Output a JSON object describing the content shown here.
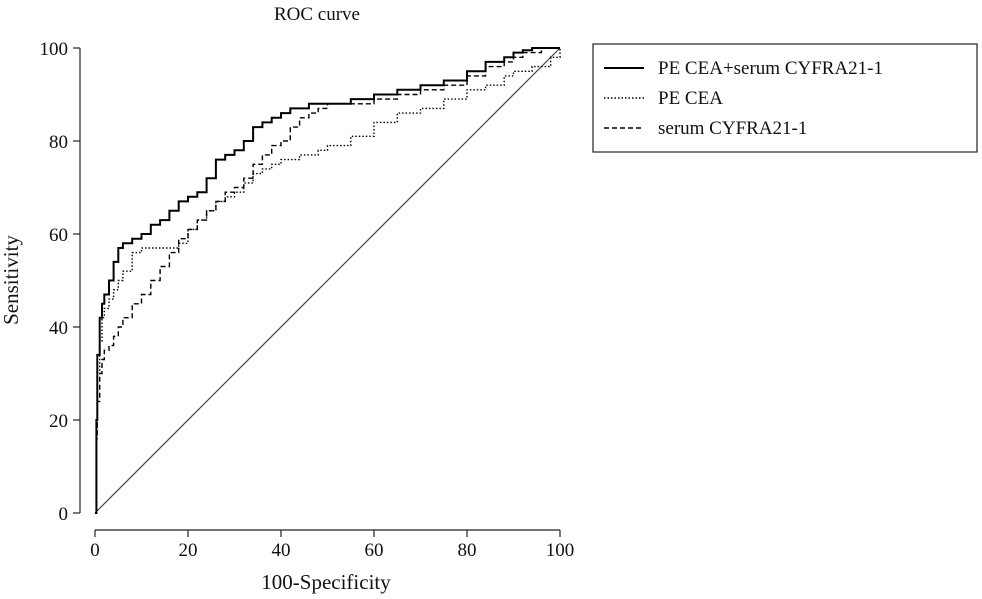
{
  "chart_data": {
    "type": "line",
    "title": "ROC curve",
    "xlabel": "100-Specificity",
    "ylabel": "Sensitivity",
    "xlim": [
      0,
      100
    ],
    "ylim": [
      0,
      100
    ],
    "xticks": [
      0,
      20,
      40,
      60,
      80,
      100
    ],
    "yticks": [
      0,
      20,
      40,
      60,
      80,
      100
    ],
    "grid": false,
    "legend_position": "top-right, outside plot",
    "reference_line": {
      "x": [
        0,
        100
      ],
      "y": [
        0,
        100
      ]
    },
    "series": [
      {
        "name": "PE CEA+serum CYFRA21-1",
        "style": "solid",
        "color": "#000000",
        "x": [
          0,
          0.3,
          0.5,
          1,
          1.5,
          2,
          3,
          4,
          5,
          6,
          8,
          10,
          12,
          14,
          16,
          18,
          20,
          22,
          24,
          26,
          28,
          30,
          32,
          34,
          36,
          38,
          40,
          42,
          44,
          46,
          48,
          50,
          55,
          60,
          65,
          70,
          75,
          80,
          84,
          88,
          90,
          92,
          94,
          96,
          98,
          100
        ],
        "y": [
          0,
          20,
          34,
          42,
          45,
          47,
          50,
          54,
          57,
          58,
          59,
          60,
          62,
          63,
          65,
          67,
          68,
          69,
          72,
          76,
          77,
          78,
          80,
          83,
          84,
          85,
          86,
          87,
          87,
          88,
          88,
          88,
          89,
          90,
          91,
          92,
          93,
          95,
          97,
          98,
          99,
          99.5,
          100,
          100,
          100,
          100
        ]
      },
      {
        "name": "PE CEA",
        "style": "dotted",
        "color": "#000000",
        "x": [
          0,
          0.3,
          0.5,
          1,
          1.5,
          2,
          3,
          4,
          5,
          6,
          8,
          10,
          12,
          14,
          16,
          18,
          20,
          22,
          24,
          26,
          28,
          30,
          32,
          34,
          36,
          38,
          40,
          42,
          44,
          46,
          48,
          50,
          55,
          60,
          65,
          70,
          75,
          80,
          84,
          88,
          90,
          92,
          94,
          96,
          98,
          100
        ],
        "y": [
          0,
          18,
          30,
          37,
          42,
          44,
          46,
          48,
          50,
          52,
          56,
          57,
          57,
          57,
          57,
          58,
          61,
          63,
          65,
          67,
          68,
          69,
          71,
          73,
          74,
          75,
          76,
          76,
          77,
          77,
          78,
          79,
          81,
          84,
          86,
          87,
          89,
          91,
          92,
          94,
          95,
          95,
          96,
          96,
          98,
          100
        ]
      },
      {
        "name": "serum CYFRA21-1",
        "style": "dashed",
        "color": "#000000",
        "x": [
          0,
          0.3,
          0.5,
          1,
          1.5,
          2,
          3,
          4,
          5,
          6,
          8,
          10,
          12,
          14,
          16,
          18,
          20,
          22,
          24,
          26,
          28,
          30,
          32,
          34,
          36,
          38,
          40,
          42,
          44,
          46,
          48,
          50,
          55,
          60,
          65,
          70,
          75,
          80,
          84,
          88,
          90,
          92,
          94,
          96,
          98,
          100
        ],
        "y": [
          0,
          16,
          24,
          30,
          33,
          35,
          36,
          38,
          40,
          42,
          45,
          47,
          50,
          53,
          56,
          59,
          61,
          63,
          65,
          67,
          69,
          70,
          72,
          75,
          77,
          79,
          80,
          83,
          85,
          86,
          87,
          88,
          88,
          89,
          90,
          91,
          92,
          94,
          96,
          97,
          98,
          99,
          99,
          100,
          100,
          100
        ]
      }
    ]
  }
}
